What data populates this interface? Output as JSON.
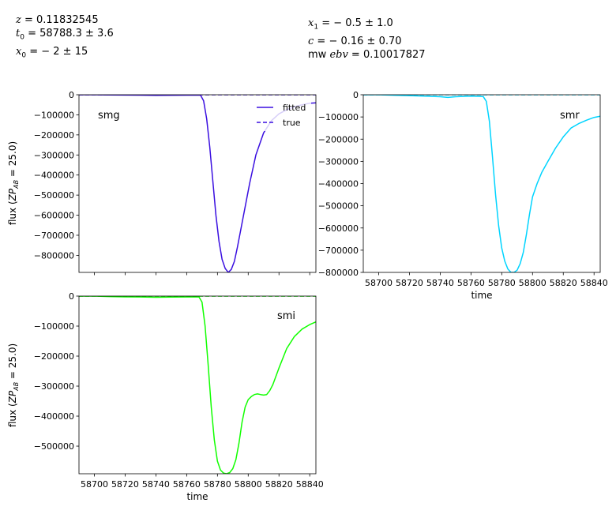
{
  "header": {
    "left": [
      {
        "var": "z",
        "rest": " = 0.11832545"
      },
      {
        "var": "t",
        "sub": "0",
        "rest": " = 58788.3 ± 3.6"
      },
      {
        "var": "x",
        "sub": "0",
        "rest": " = − 2 ± 15"
      }
    ],
    "right": [
      {
        "var": "x",
        "sub": "1",
        "rest": " = − 0.5 ± 1.0"
      },
      {
        "var": "c",
        "rest": " = − 0.16 ± 0.70"
      },
      {
        "pre": "mw ",
        "var": "ebv",
        "rest": " = 0.10017827"
      }
    ]
  },
  "chart_data": [
    {
      "type": "line",
      "band": "smg",
      "color": "#3a0fe0",
      "ylabel": "flux (ZP_AB = 25.0)",
      "xlabel": "",
      "xlim": [
        58690,
        58844
      ],
      "ylim": [
        -885000,
        0
      ],
      "yticks": [
        0,
        -100000,
        -200000,
        -300000,
        -400000,
        -500000,
        -600000,
        -700000,
        -800000
      ],
      "ytick_labels": [
        "0",
        "−100000",
        "−200000",
        "−300000",
        "−400000",
        "−500000",
        "−600000",
        "−700000",
        "−800000"
      ],
      "xticks": [
        58700,
        58720,
        58740,
        58760,
        58780,
        58800,
        58820,
        58840
      ],
      "show_xtick_labels": false,
      "legend": {
        "position": "top-right",
        "entries": [
          "fitted",
          "true"
        ]
      },
      "series": [
        {
          "name": "fitted",
          "style": "solid",
          "x": [
            58690,
            58700,
            58710,
            58720,
            58730,
            58740,
            58750,
            58760,
            58765,
            58769,
            58771,
            58773,
            58775,
            58777,
            58779,
            58781,
            58783,
            58785,
            58787,
            58789,
            58791,
            58793,
            58795,
            58797,
            58799,
            58801,
            58803,
            58805,
            58810,
            58815,
            58820,
            58825,
            58830,
            58835,
            58840,
            58844
          ],
          "y": [
            0,
            0,
            -1000,
            -1500,
            -2000,
            -3000,
            -2500,
            -2000,
            -1500,
            -2000,
            -30000,
            -120000,
            -260000,
            -430000,
            -600000,
            -730000,
            -820000,
            -865000,
            -885000,
            -870000,
            -830000,
            -760000,
            -680000,
            -600000,
            -520000,
            -440000,
            -370000,
            -300000,
            -190000,
            -130000,
            -95000,
            -75000,
            -60000,
            -50000,
            -42000,
            -40000
          ]
        },
        {
          "name": "true",
          "style": "dashed",
          "x": [
            58690,
            58700,
            58710,
            58720,
            58730,
            58740,
            58750,
            58760,
            58770,
            58780,
            58790,
            58800,
            58810,
            58820,
            58830,
            58844
          ],
          "y": [
            0,
            0,
            0,
            0,
            0,
            0,
            0,
            0,
            0,
            0,
            0,
            0,
            0,
            0,
            0,
            0
          ]
        }
      ]
    },
    {
      "type": "line",
      "band": "smr",
      "color": "#00d4ff",
      "ylabel": "",
      "xlabel": "time",
      "xlim": [
        58690,
        58844
      ],
      "ylim": [
        -800000,
        0
      ],
      "yticks": [
        0,
        -100000,
        -200000,
        -300000,
        -400000,
        -500000,
        -600000,
        -700000,
        -800000
      ],
      "ytick_labels": [
        "0",
        "−100000",
        "−200000",
        "−300000",
        "−400000",
        "−500000",
        "−600000",
        "−700000",
        "−800000"
      ],
      "xticks": [
        58700,
        58720,
        58740,
        58760,
        58780,
        58800,
        58820,
        58840
      ],
      "show_xtick_labels": true,
      "series": [
        {
          "name": "fitted",
          "style": "solid",
          "x": [
            58690,
            58700,
            58710,
            58720,
            58730,
            58740,
            58745,
            58750,
            58760,
            58768,
            58770,
            58772,
            58774,
            58776,
            58778,
            58780,
            58782,
            58784,
            58786,
            58788,
            58790,
            58792,
            58794,
            58796,
            58798,
            58800,
            58803,
            58806,
            58810,
            58815,
            58820,
            58825,
            58830,
            58835,
            58840,
            58844
          ],
          "y": [
            0,
            0,
            -2000,
            -4000,
            -6000,
            -9000,
            -12000,
            -9000,
            -6000,
            -8000,
            -30000,
            -120000,
            -280000,
            -450000,
            -590000,
            -690000,
            -750000,
            -785000,
            -800000,
            -800000,
            -790000,
            -760000,
            -710000,
            -630000,
            -540000,
            -460000,
            -400000,
            -350000,
            -300000,
            -240000,
            -190000,
            -150000,
            -130000,
            -115000,
            -102000,
            -97000
          ]
        },
        {
          "name": "true",
          "style": "dashed",
          "x": [
            58690,
            58710,
            58730,
            58750,
            58770,
            58790,
            58810,
            58830,
            58844
          ],
          "y": [
            0,
            0,
            0,
            0,
            0,
            0,
            0,
            0,
            0
          ]
        }
      ]
    },
    {
      "type": "line",
      "band": "smi",
      "color": "#11ff00",
      "ylabel": "flux (ZP_AB = 25.0)",
      "xlabel": "time",
      "xlim": [
        58690,
        58844
      ],
      "ylim": [
        -592000,
        0
      ],
      "yticks": [
        0,
        -100000,
        -200000,
        -300000,
        -400000,
        -500000
      ],
      "ytick_labels": [
        "0",
        "−100000",
        "−200000",
        "−300000",
        "−400000",
        "−500000"
      ],
      "xticks": [
        58700,
        58720,
        58740,
        58760,
        58780,
        58800,
        58820,
        58840
      ],
      "show_xtick_labels": true,
      "series": [
        {
          "name": "fitted",
          "style": "solid",
          "x": [
            58690,
            58700,
            58710,
            58720,
            58730,
            58740,
            58750,
            58760,
            58768,
            58770,
            58772,
            58774,
            58776,
            58778,
            58780,
            58782,
            58784,
            58786,
            58788,
            58790,
            58792,
            58794,
            58796,
            58798,
            58800,
            58802,
            58804,
            58806,
            58808,
            58810,
            58812,
            58814,
            58816,
            58820,
            58825,
            58830,
            58835,
            58840,
            58844
          ],
          "y": [
            0,
            0,
            -1500,
            -2500,
            -3000,
            -4000,
            -3500,
            -3000,
            -2500,
            -20000,
            -100000,
            -230000,
            -370000,
            -480000,
            -550000,
            -580000,
            -590000,
            -592000,
            -588000,
            -575000,
            -545000,
            -490000,
            -420000,
            -370000,
            -345000,
            -335000,
            -328000,
            -326000,
            -328000,
            -330000,
            -328000,
            -315000,
            -295000,
            -240000,
            -175000,
            -135000,
            -110000,
            -95000,
            -86000
          ]
        },
        {
          "name": "true",
          "style": "dashed",
          "x": [
            58690,
            58710,
            58730,
            58750,
            58770,
            58790,
            58810,
            58830,
            58844
          ],
          "y": [
            0,
            0,
            0,
            0,
            0,
            0,
            0,
            0,
            0
          ]
        }
      ]
    }
  ]
}
